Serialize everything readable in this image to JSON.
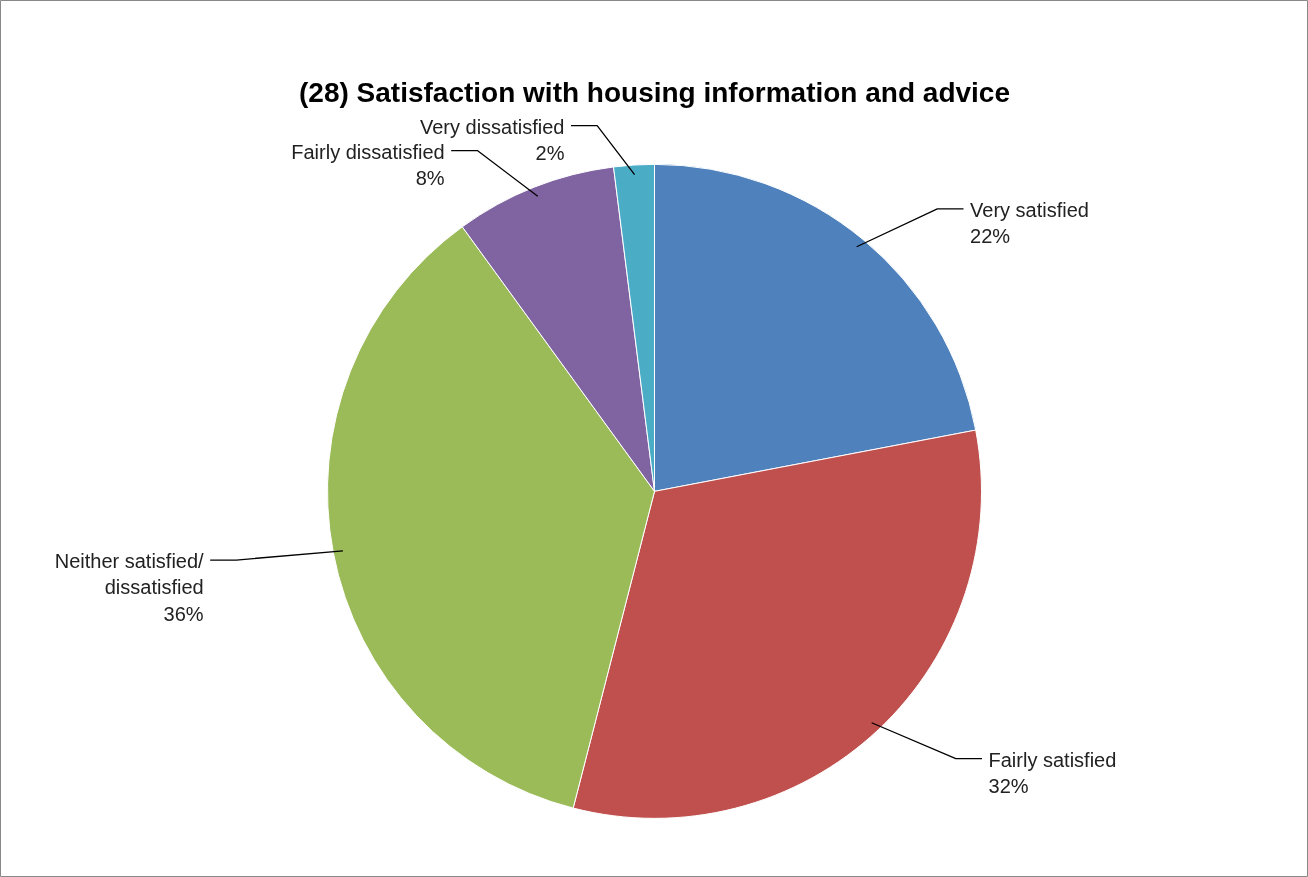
{
  "chart_data": {
    "type": "pie",
    "title": "(28) Satisfaction with housing information and advice",
    "categories": [
      "Very satisfied",
      "Fairly satisfied",
      "Neither satisfied/ dissatisfied",
      "Fairly dissatisfied",
      "Very dissatisfied"
    ],
    "values": [
      22,
      32,
      36,
      8,
      2
    ],
    "colors": [
      "#4f81bd",
      "#c0504d",
      "#9bbb59",
      "#8064a2",
      "#4bacc6"
    ],
    "data_labels": true,
    "value_labels": [
      "22%",
      "32%",
      "36%",
      "8%",
      "2%"
    ]
  }
}
